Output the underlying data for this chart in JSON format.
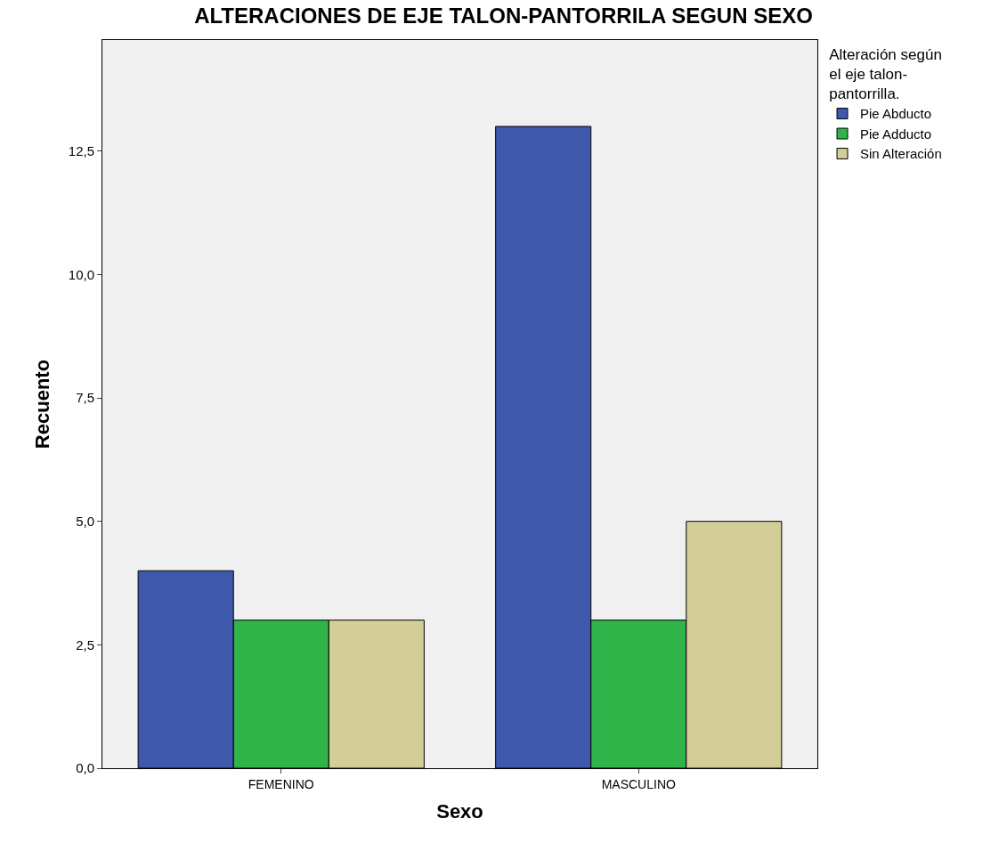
{
  "chart_data": {
    "type": "bar",
    "title": "ALTERACIONES DE EJE TALON-PANTORRILA SEGUN SEXO",
    "xlabel": "Sexo",
    "ylabel": "Recuento",
    "legend_title": "Alteración según el eje talon-pantorrilla.",
    "categories": [
      "FEMENINO",
      "MASCULINO"
    ],
    "series": [
      {
        "name": "Pie Abducto",
        "color": "#3e58ac",
        "values": [
          4,
          13
        ]
      },
      {
        "name": "Pie Adducto",
        "color": "#2fb44a",
        "values": [
          3,
          3
        ]
      },
      {
        "name": "Sin Alteración",
        "color": "#d3ce97",
        "values": [
          3,
          5
        ]
      }
    ],
    "ylim": [
      0,
      14.75
    ],
    "yticks": [
      {
        "value": 0,
        "label": "0,0"
      },
      {
        "value": 2.5,
        "label": "2,5"
      },
      {
        "value": 5,
        "label": "5,0"
      },
      {
        "value": 7.5,
        "label": "7,5"
      },
      {
        "value": 10,
        "label": "10,0"
      },
      {
        "value": 12.5,
        "label": "12,5"
      }
    ],
    "grid": false,
    "legend": "top right"
  }
}
